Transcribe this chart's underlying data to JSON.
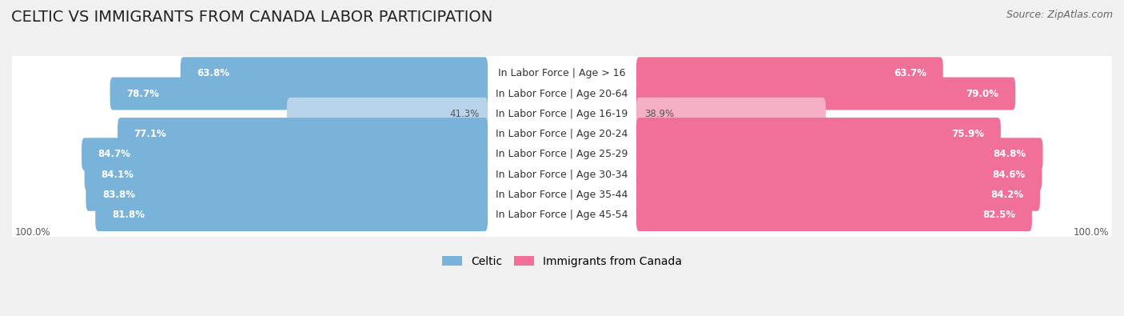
{
  "title": "Celtic vs Immigrants from Canada Labor Participation",
  "source": "Source: ZipAtlas.com",
  "categories": [
    "In Labor Force | Age > 16",
    "In Labor Force | Age 20-64",
    "In Labor Force | Age 16-19",
    "In Labor Force | Age 20-24",
    "In Labor Force | Age 25-29",
    "In Labor Force | Age 30-34",
    "In Labor Force | Age 35-44",
    "In Labor Force | Age 45-54"
  ],
  "celtic_values": [
    63.8,
    78.7,
    41.3,
    77.1,
    84.7,
    84.1,
    83.8,
    81.8
  ],
  "immigrant_values": [
    63.7,
    79.0,
    38.9,
    75.9,
    84.8,
    84.6,
    84.2,
    82.5
  ],
  "celtic_color": "#7ab3d9",
  "celtic_color_light": "#b8d4ea",
  "immigrant_color": "#f07098",
  "immigrant_color_light": "#f5b0c5",
  "max_val": 100.0,
  "bg_color": "#f0f0f0",
  "row_bg_color": "#e8e8e8",
  "title_fontsize": 14,
  "label_fontsize": 9,
  "value_fontsize": 8.5,
  "legend_fontsize": 10,
  "source_fontsize": 9
}
